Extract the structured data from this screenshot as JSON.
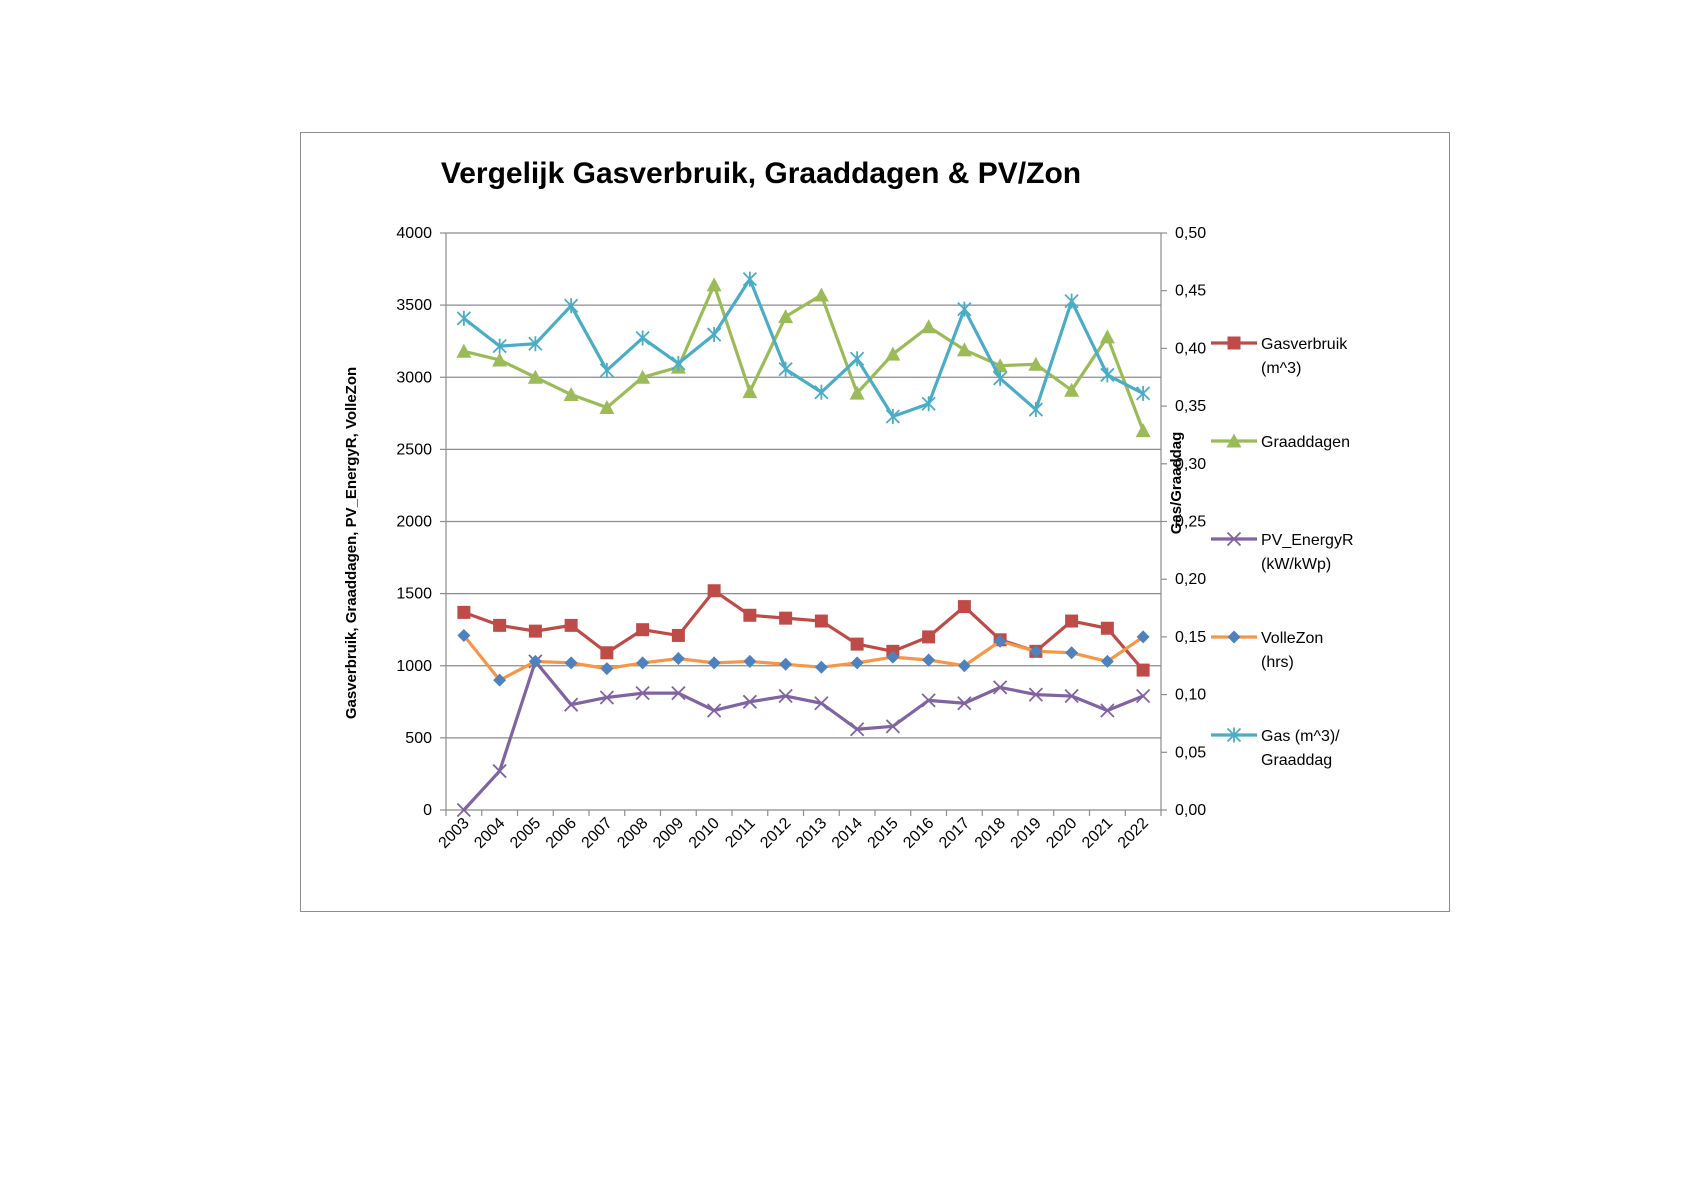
{
  "chart_data": {
    "type": "line",
    "title": "Vergelijk Gasverbruik, Graaddagen & PV/Zon",
    "ylabel": "Gasverbruik,  Graaddagen, PV_EnergyR, VolleZon",
    "y2label": "Gas/Graaddag",
    "xlabel": "",
    "categories": [
      "2003",
      "2004",
      "2005",
      "2006",
      "2007",
      "2008",
      "2009",
      "2010",
      "2011",
      "2012",
      "2013",
      "2014",
      "2015",
      "2016",
      "2017",
      "2018",
      "2019",
      "2020",
      "2021",
      "2022"
    ],
    "ylim": [
      0,
      4000
    ],
    "yticks": [
      "0",
      "500",
      "1000",
      "1500",
      "2000",
      "2500",
      "3000",
      "3500",
      "4000"
    ],
    "y2lim": [
      0,
      0.5
    ],
    "y2ticks": [
      "0,00",
      "0,05",
      "0,10",
      "0,15",
      "0,20",
      "0,25",
      "0,30",
      "0,35",
      "0,40",
      "0,45",
      "0,50"
    ],
    "grid": true,
    "legend_position": "right",
    "series": [
      {
        "name": "Gasverbruik (m^3)",
        "legend_lines": [
          "Gasverbruik",
          "(m^3)"
        ],
        "color": "#be4b48",
        "marker": "square",
        "axis": "left",
        "values": [
          1370,
          1280,
          1240,
          1280,
          1090,
          1250,
          1210,
          1520,
          1350,
          1330,
          1310,
          1150,
          1100,
          1200,
          1410,
          1180,
          1100,
          1310,
          1260,
          970
        ]
      },
      {
        "name": "Graaddagen",
        "legend_lines": [
          "Graaddagen"
        ],
        "color": "#9bbb59",
        "marker": "triangle",
        "axis": "left",
        "values": [
          3180,
          3120,
          3000,
          2880,
          2790,
          3000,
          3070,
          3640,
          2900,
          3420,
          3570,
          2890,
          3160,
          3350,
          3190,
          3080,
          3090,
          2910,
          3280,
          2630
        ]
      },
      {
        "name": "PV_EnergyR (kW/kWp)",
        "legend_lines": [
          "PV_EnergyR",
          "(kW/kWp)"
        ],
        "color": "#8064a2",
        "marker": "x",
        "axis": "left",
        "values": [
          0,
          270,
          1030,
          730,
          780,
          810,
          810,
          690,
          750,
          790,
          740,
          560,
          580,
          760,
          740,
          850,
          800,
          790,
          690,
          790
        ]
      },
      {
        "name": "VolleZon (hrs)",
        "legend_lines": [
          "VolleZon",
          "(hrs)"
        ],
        "color": "#f79646",
        "marker_color": "#4f81bd",
        "marker": "diamond",
        "axis": "left",
        "values": [
          1210,
          900,
          1030,
          1020,
          980,
          1020,
          1050,
          1020,
          1030,
          1010,
          990,
          1020,
          1060,
          1040,
          1000,
          1170,
          1100,
          1090,
          1030,
          1200
        ]
      },
      {
        "name": "Gas (m^3)/ Graaddag",
        "legend_lines": [
          "Gas (m^3)/",
          "Graaddag"
        ],
        "color": "#4bacc6",
        "marker": "star",
        "axis": "right",
        "values": [
          0.426,
          0.402,
          0.404,
          0.437,
          0.381,
          0.409,
          0.387,
          0.412,
          0.46,
          0.382,
          0.362,
          0.391,
          0.341,
          0.352,
          0.434,
          0.374,
          0.347,
          0.441,
          0.377,
          0.361
        ]
      }
    ]
  }
}
